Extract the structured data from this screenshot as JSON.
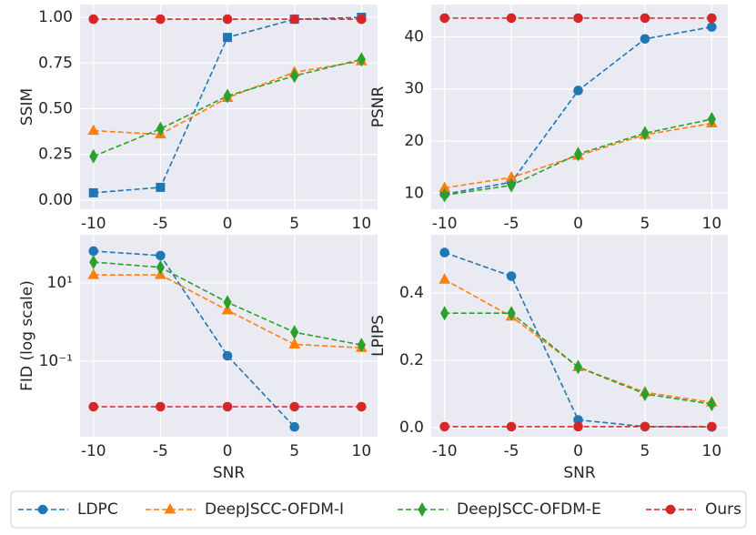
{
  "chart_data": [
    {
      "type": "line",
      "ylabel": "SSIM",
      "x": [
        -10,
        -5,
        0,
        5,
        10
      ],
      "xlim": [
        -11,
        11.2
      ],
      "xticks": [
        -10,
        -5,
        0,
        5,
        10
      ],
      "ylim": [
        -0.05,
        1.07
      ],
      "yticks": [
        {
          "value": 0,
          "label": "0.00"
        },
        {
          "value": 0.25,
          "label": "0.25"
        },
        {
          "value": 0.5,
          "label": "0.50"
        },
        {
          "value": 0.75,
          "label": "0.75"
        },
        {
          "value": 1,
          "label": "1.00"
        }
      ],
      "grid": true,
      "series": [
        {
          "name": "LDPC",
          "color": "#1f77b4",
          "marker": "square",
          "values": [
            0.04,
            0.07,
            0.89,
            0.99,
            1.0
          ]
        },
        {
          "name": "DeepJSCC-OFDM-I",
          "color": "#ff7f0e",
          "marker": "triangle",
          "values": [
            0.38,
            0.36,
            0.56,
            0.7,
            0.76
          ]
        },
        {
          "name": "DeepJSCC-OFDM-E",
          "color": "#2ca02c",
          "marker": "diamond",
          "values": [
            0.24,
            0.39,
            0.57,
            0.68,
            0.77
          ]
        },
        {
          "name": "Ours",
          "color": "#d62728",
          "marker": "circle",
          "values": [
            0.99,
            0.99,
            0.99,
            0.99,
            0.99
          ]
        }
      ]
    },
    {
      "type": "line",
      "ylabel": "PSNR",
      "x": [
        -10,
        -5,
        0,
        5,
        10
      ],
      "xlim": [
        -11,
        11.2
      ],
      "xticks": [
        -10,
        -5,
        0,
        5,
        10
      ],
      "ylim": [
        6.9,
        46.2
      ],
      "yticks": [
        10,
        20,
        30,
        40
      ],
      "grid": true,
      "series": [
        {
          "name": "LDPC",
          "color": "#1f77b4",
          "marker": "circle",
          "values": [
            9.8,
            12.1,
            29.7,
            39.6,
            41.9
          ]
        },
        {
          "name": "DeepJSCC-OFDM-I",
          "color": "#ff7f0e",
          "marker": "triangle",
          "values": [
            11,
            13,
            17.2,
            21.2,
            23.4
          ]
        },
        {
          "name": "DeepJSCC-OFDM-E",
          "color": "#2ca02c",
          "marker": "diamond",
          "values": [
            9.6,
            11.5,
            17.5,
            21.5,
            24.2
          ]
        },
        {
          "name": "Ours",
          "color": "#d62728",
          "marker": "circle",
          "values": [
            43.6,
            43.6,
            43.6,
            43.6,
            43.6
          ]
        }
      ]
    },
    {
      "type": "line",
      "ylabel": "FID (log scale)",
      "xlabel": "SNR",
      "x": [
        -10,
        -5,
        0,
        5,
        10
      ],
      "xlim": [
        -11,
        11.2
      ],
      "xticks": [
        -10,
        -5,
        0,
        5,
        10
      ],
      "ylim": [
        0.00118,
        170
      ],
      "log_y": true,
      "yticks": [
        {
          "value": 0.1,
          "label": "10⁻¹"
        },
        {
          "value": 10,
          "label": "10¹"
        }
      ],
      "grid": true,
      "series": [
        {
          "name": "LDPC",
          "color": "#1f77b4",
          "marker": "circle",
          "values": [
            65,
            50,
            0.138,
            0.0021,
            null
          ]
        },
        {
          "name": "DeepJSCC-OFDM-I",
          "color": "#ff7f0e",
          "marker": "triangle",
          "values": [
            16,
            16,
            2.0,
            0.27,
            0.22
          ]
        },
        {
          "name": "DeepJSCC-OFDM-E",
          "color": "#2ca02c",
          "marker": "diamond",
          "values": [
            34,
            25,
            3.2,
            0.55,
            0.26
          ]
        },
        {
          "name": "Ours",
          "color": "#d62728",
          "marker": "circle",
          "values": [
            0.0069,
            0.0069,
            0.0069,
            0.0069,
            0.0069
          ]
        }
      ]
    },
    {
      "type": "line",
      "ylabel": "LPIPS",
      "xlabel": "SNR",
      "x": [
        -10,
        -5,
        0,
        5,
        10
      ],
      "xlim": [
        -11,
        11.2
      ],
      "xticks": [
        -10,
        -5,
        0,
        5,
        10
      ],
      "ylim": [
        -0.027,
        0.573
      ],
      "yticks": [
        {
          "value": 0,
          "label": "0.0"
        },
        {
          "value": 0.2,
          "label": "0.2"
        },
        {
          "value": 0.4,
          "label": "0.4"
        }
      ],
      "grid": true,
      "series": [
        {
          "name": "LDPC",
          "color": "#1f77b4",
          "marker": "circle",
          "values": [
            0.52,
            0.45,
            0.023,
            0.003,
            0.002
          ]
        },
        {
          "name": "DeepJSCC-OFDM-I",
          "color": "#ff7f0e",
          "marker": "triangle",
          "values": [
            0.44,
            0.33,
            0.18,
            0.105,
            0.075
          ]
        },
        {
          "name": "DeepJSCC-OFDM-E",
          "color": "#2ca02c",
          "marker": "diamond",
          "values": [
            0.34,
            0.34,
            0.18,
            0.1,
            0.07
          ]
        },
        {
          "name": "Ours",
          "color": "#d62728",
          "marker": "circle",
          "values": [
            0.003,
            0.003,
            0.003,
            0.003,
            0.003
          ]
        }
      ]
    }
  ]
}
